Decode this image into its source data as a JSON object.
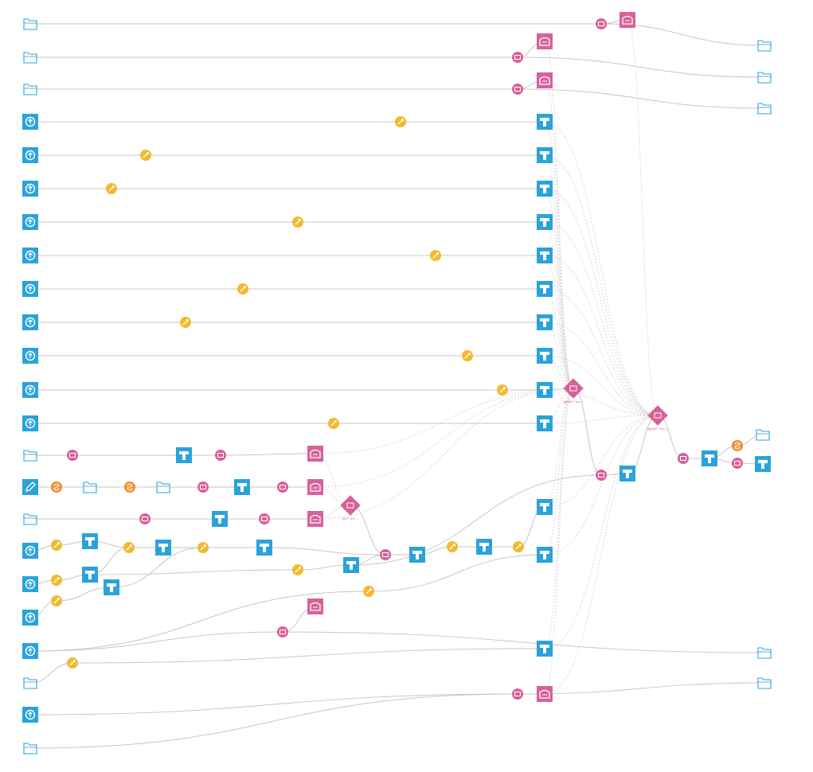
{
  "flow": {
    "nodes": [
      {
        "id": "ds_a",
        "kind": "folder",
        "label": ""
      },
      {
        "id": "ds_b",
        "kind": "folder",
        "label": ""
      },
      {
        "id": "ds_c",
        "kind": "folder",
        "label": ""
      },
      {
        "id": "up_1",
        "kind": "upload",
        "label": ""
      },
      {
        "id": "up_2",
        "kind": "upload",
        "label": ""
      },
      {
        "id": "up_3",
        "kind": "upload",
        "label": ""
      },
      {
        "id": "up_4",
        "kind": "upload",
        "label": ""
      },
      {
        "id": "up_5",
        "kind": "upload",
        "label": ""
      },
      {
        "id": "up_6",
        "kind": "upload",
        "label": ""
      },
      {
        "id": "up_7",
        "kind": "upload",
        "label": ""
      },
      {
        "id": "up_8",
        "kind": "upload",
        "label": ""
      },
      {
        "id": "up_9",
        "kind": "upload",
        "label": ""
      },
      {
        "id": "up_10",
        "kind": "upload",
        "label": ""
      },
      {
        "id": "ds_d",
        "kind": "folder",
        "label": ""
      },
      {
        "id": "editable",
        "kind": "pencil",
        "label": ""
      },
      {
        "id": "ds_e",
        "kind": "folder",
        "label": ""
      },
      {
        "id": "up_11",
        "kind": "upload",
        "label": ""
      },
      {
        "id": "up_12",
        "kind": "upload",
        "label": ""
      },
      {
        "id": "up_13",
        "kind": "upload",
        "label": ""
      },
      {
        "id": "up_14",
        "kind": "upload",
        "label": ""
      },
      {
        "id": "ds_f",
        "kind": "folder",
        "label": ""
      },
      {
        "id": "up_15",
        "kind": "upload",
        "label": ""
      },
      {
        "id": "ds_g",
        "kind": "folder",
        "label": ""
      },
      {
        "id": "sync_a",
        "kind": "pink-circle",
        "label": ""
      },
      {
        "id": "sync_b",
        "kind": "pink-circle",
        "label": ""
      },
      {
        "id": "sync_c",
        "kind": "pink-circle",
        "label": ""
      },
      {
        "id": "pm_a",
        "kind": "pink-box",
        "label": ""
      },
      {
        "id": "pm_b",
        "kind": "pink-box",
        "label": ""
      },
      {
        "id": "pm_c",
        "kind": "pink-box",
        "label": ""
      },
      {
        "id": "out_a",
        "kind": "folder",
        "label": ""
      },
      {
        "id": "out_b",
        "kind": "folder",
        "label": ""
      },
      {
        "id": "out_c",
        "kind": "folder",
        "label": ""
      },
      {
        "id": "prep_1",
        "kind": "yellow-circle",
        "label": ""
      },
      {
        "id": "prep_2",
        "kind": "yellow-circle",
        "label": ""
      },
      {
        "id": "prep_3",
        "kind": "yellow-circle",
        "label": ""
      },
      {
        "id": "prep_4",
        "kind": "yellow-circle",
        "label": ""
      },
      {
        "id": "prep_5",
        "kind": "yellow-circle",
        "label": ""
      },
      {
        "id": "prep_6",
        "kind": "yellow-circle",
        "label": ""
      },
      {
        "id": "prep_7",
        "kind": "yellow-circle",
        "label": ""
      },
      {
        "id": "prep_8",
        "kind": "yellow-circle",
        "label": ""
      },
      {
        "id": "prep_9",
        "kind": "yellow-circle",
        "label": ""
      },
      {
        "id": "prep_10",
        "kind": "yellow-circle",
        "label": ""
      },
      {
        "id": "prep_11",
        "kind": "yellow-circle",
        "label": ""
      },
      {
        "id": "ds_1",
        "kind": "blue-box",
        "label": ""
      },
      {
        "id": "ds_2",
        "kind": "blue-box",
        "label": ""
      },
      {
        "id": "ds_3",
        "kind": "blue-box",
        "label": ""
      },
      {
        "id": "ds_4",
        "kind": "blue-box",
        "label": ""
      },
      {
        "id": "ds_5",
        "kind": "blue-box",
        "label": ""
      },
      {
        "id": "ds_6",
        "kind": "blue-box",
        "label": ""
      },
      {
        "id": "ds_7",
        "kind": "blue-box",
        "label": ""
      },
      {
        "id": "ds_8",
        "kind": "blue-box",
        "label": ""
      },
      {
        "id": "ds_9",
        "kind": "blue-box",
        "label": ""
      },
      {
        "id": "ds_10",
        "kind": "blue-box",
        "label": ""
      },
      {
        "id": "ds_11",
        "kind": "blue-box",
        "label": ""
      },
      {
        "id": "zone_1",
        "kind": "pink-diamond",
        "label": "追加学習データセット"
      },
      {
        "id": "zone_2",
        "kind": "pink-diamond",
        "label": "追加学習データセット"
      },
      {
        "id": "zone_3",
        "kind": "pink-diamond",
        "label": "外部データセット"
      },
      {
        "id": "d_14_s",
        "kind": "pink-circle",
        "label": ""
      },
      {
        "id": "d_14_m",
        "kind": "blue-box",
        "label": ""
      },
      {
        "id": "d_14_p",
        "kind": "pink-circle",
        "label": ""
      },
      {
        "id": "d_14_o",
        "kind": "pink-box",
        "label": ""
      },
      {
        "id": "py_1",
        "kind": "orange-circle",
        "label": ""
      },
      {
        "id": "fold_1",
        "kind": "folder",
        "label": ""
      },
      {
        "id": "py_2",
        "kind": "orange-circle",
        "label": ""
      },
      {
        "id": "fold_2",
        "kind": "folder",
        "label": ""
      },
      {
        "id": "e_s1",
        "kind": "pink-circle",
        "label": ""
      },
      {
        "id": "e_m",
        "kind": "blue-box",
        "label": ""
      },
      {
        "id": "e_s2",
        "kind": "pink-circle",
        "label": ""
      },
      {
        "id": "e_o",
        "kind": "pink-box",
        "label": ""
      },
      {
        "id": "f_s1",
        "kind": "pink-circle",
        "label": ""
      },
      {
        "id": "f_m",
        "kind": "blue-box",
        "label": ""
      },
      {
        "id": "f_s2",
        "kind": "pink-circle",
        "label": ""
      },
      {
        "id": "f_o",
        "kind": "pink-box",
        "label": ""
      },
      {
        "id": "g_p1",
        "kind": "yellow-circle",
        "label": ""
      },
      {
        "id": "g_p2",
        "kind": "yellow-circle",
        "label": ""
      },
      {
        "id": "g_p3",
        "kind": "yellow-circle",
        "label": ""
      },
      {
        "id": "g_b1",
        "kind": "blue-box",
        "label": ""
      },
      {
        "id": "g_b2",
        "kind": "blue-box",
        "label": ""
      },
      {
        "id": "g_b3",
        "kind": "blue-box",
        "label": ""
      },
      {
        "id": "g_j1",
        "kind": "yellow-circle",
        "label": ""
      },
      {
        "id": "g_b4",
        "kind": "blue-box",
        "label": ""
      },
      {
        "id": "g_j2",
        "kind": "yellow-circle",
        "label": ""
      },
      {
        "id": "g_b5",
        "kind": "blue-box",
        "label": ""
      },
      {
        "id": "g_f",
        "kind": "yellow-circle",
        "label": ""
      },
      {
        "id": "g_b6",
        "kind": "blue-box",
        "label": ""
      },
      {
        "id": "g_ai",
        "kind": "pink-circle",
        "label": ""
      },
      {
        "id": "g_b7",
        "kind": "blue-box",
        "label": ""
      },
      {
        "id": "g_j3",
        "kind": "yellow-circle",
        "label": ""
      },
      {
        "id": "g_b8",
        "kind": "blue-box",
        "label": ""
      },
      {
        "id": "g_p4",
        "kind": "yellow-circle",
        "label": ""
      },
      {
        "id": "g_b9",
        "kind": "blue-box",
        "label": ""
      },
      {
        "id": "g_p5",
        "kind": "yellow-circle",
        "label": ""
      },
      {
        "id": "g_b10",
        "kind": "blue-box",
        "label": ""
      },
      {
        "id": "h_o",
        "kind": "pink-box",
        "label": ""
      },
      {
        "id": "h_s",
        "kind": "pink-circle",
        "label": ""
      },
      {
        "id": "h_out",
        "kind": "folder",
        "label": ""
      },
      {
        "id": "i_p",
        "kind": "yellow-circle",
        "label": ""
      },
      {
        "id": "i_b",
        "kind": "blue-box",
        "label": ""
      },
      {
        "id": "j_s",
        "kind": "pink-circle",
        "label": ""
      },
      {
        "id": "j_o",
        "kind": "pink-box",
        "label": ""
      },
      {
        "id": "j_out",
        "kind": "folder",
        "label": ""
      },
      {
        "id": "k_ai",
        "kind": "pink-circle",
        "label": ""
      },
      {
        "id": "k_b",
        "kind": "blue-box",
        "label": ""
      },
      {
        "id": "k_ai2",
        "kind": "pink-circle",
        "label": ""
      },
      {
        "id": "k_b2",
        "kind": "blue-box",
        "label": ""
      },
      {
        "id": "k_py",
        "kind": "orange-circle",
        "label": ""
      },
      {
        "id": "k_out",
        "kind": "folder",
        "label": ""
      },
      {
        "id": "k_ai3",
        "kind": "pink-circle",
        "label": ""
      },
      {
        "id": "k_b3",
        "kind": "blue-box",
        "label": ""
      }
    ],
    "colors": {
      "blue": "#2aa3db",
      "pink": "#d7619a",
      "yellow": "#f4b92e",
      "orange": "#ee8b2a",
      "folder": "#2aa3db",
      "edge": "#c7c7c7"
    }
  }
}
